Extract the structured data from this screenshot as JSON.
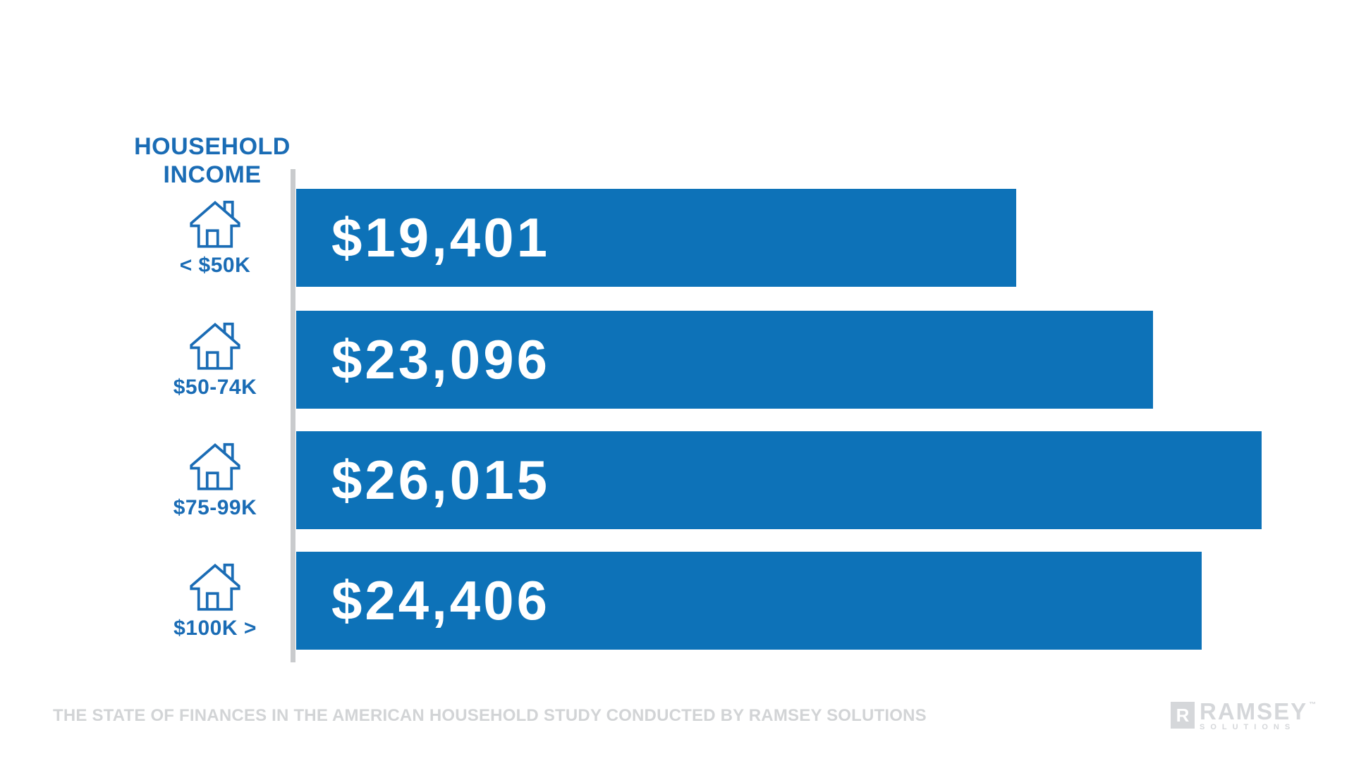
{
  "header": {
    "line1": "HOUSEHOLD",
    "line2": "INCOME"
  },
  "chart_data": {
    "type": "bar",
    "orientation": "horizontal",
    "title": "HOUSEHOLD INCOME",
    "categories": [
      "< $50K",
      "$50-74K",
      "$75-99K",
      "$100K >"
    ],
    "values": [
      19401,
      23096,
      26015,
      24406
    ],
    "value_labels": [
      "$19,401",
      "$23,096",
      "$26,015",
      "$24,406"
    ],
    "category_icon": "house-icon",
    "bar_color": "#0d72b8",
    "label_color": "#1a6cb5",
    "axis_color": "#c9cbcd",
    "value_label_color": "#ffffff",
    "legend": "none",
    "grid": "off",
    "xlim": [
      0,
      26015
    ]
  },
  "footer": {
    "source_text": "THE STATE OF FINANCES IN THE AMERICAN HOUSEHOLD STUDY CONDUCTED BY RAMSEY SOLUTIONS",
    "text_color": "#d2d4d6"
  },
  "logo": {
    "mark_letter": "R",
    "name": "RAMSEY",
    "trademark": "™",
    "subtext": "SOLUTIONS",
    "color": "#d5d7da"
  }
}
